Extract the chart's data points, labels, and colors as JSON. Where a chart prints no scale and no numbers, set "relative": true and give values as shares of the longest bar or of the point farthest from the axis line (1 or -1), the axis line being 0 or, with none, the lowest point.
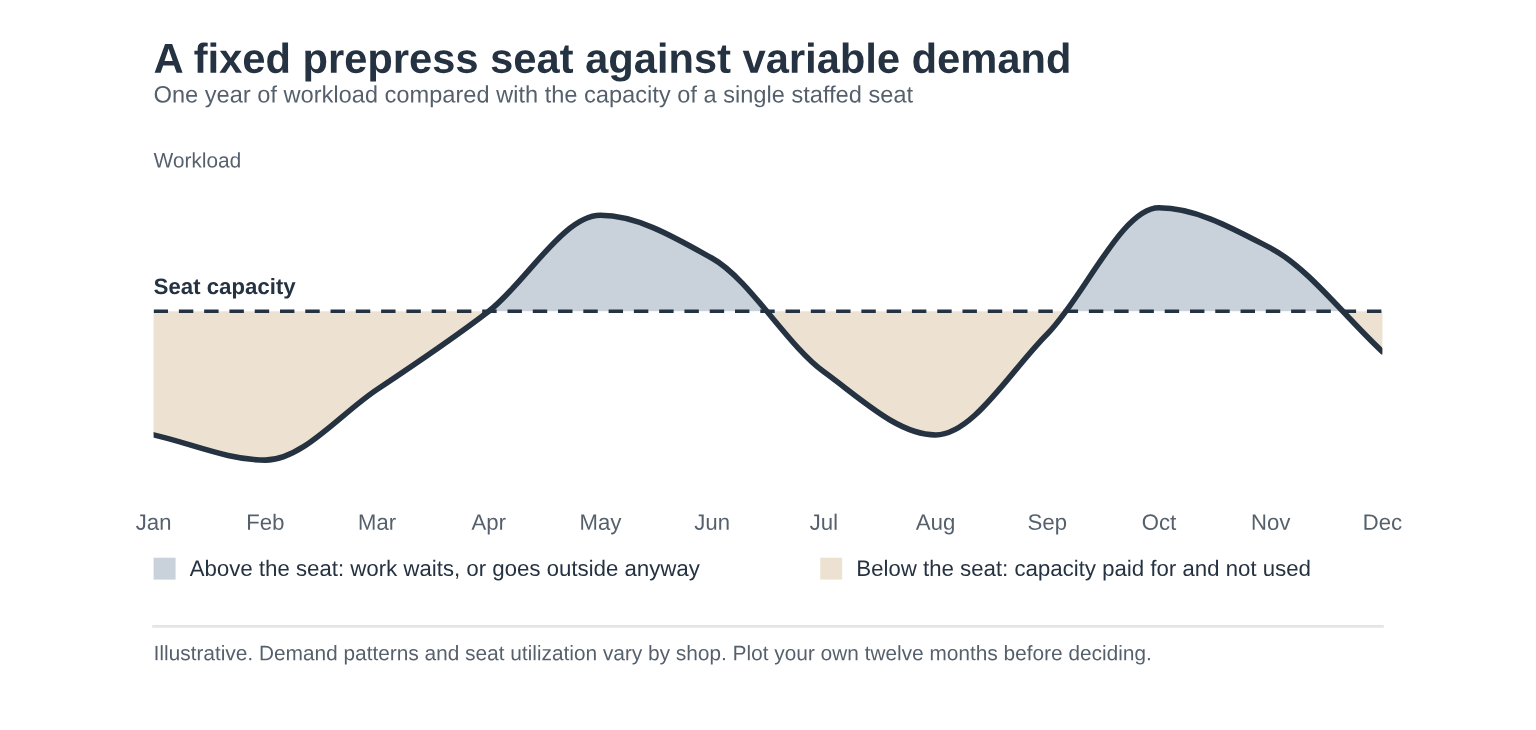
{
  "chart_data": {
    "type": "line",
    "title": "A fixed prepress seat against variable demand",
    "subtitle": "One year of workload compared with the capacity of a single staffed seat",
    "ylabel": "Workload",
    "categories": [
      "Jan",
      "Feb",
      "Mar",
      "Apr",
      "May",
      "Jun",
      "Jul",
      "Aug",
      "Sep",
      "Oct",
      "Nov",
      "Dec"
    ],
    "relative": true,
    "series": [
      {
        "color": "#253241",
        "values": [
          0.1,
          0.0,
          0.28,
          0.59,
          0.97,
          0.8,
          0.35,
          0.1,
          0.5,
          1.0,
          0.84,
          0.43
        ]
      }
    ],
    "ref_lines": [
      {
        "axis": "y",
        "value": 0.59,
        "label": "Seat capacity",
        "color": "#253241",
        "line_style": "dashed"
      }
    ],
    "tick_labels": "x",
    "line_style": "solid",
    "annotations": [
      "Above the seat: work waits, or goes outside anyway",
      "Below the seat: capacity paid for and not used",
      "Illustrative. Demand patterns and seat utilization vary by shop. Plot your own twelve months before deciding."
    ]
  }
}
